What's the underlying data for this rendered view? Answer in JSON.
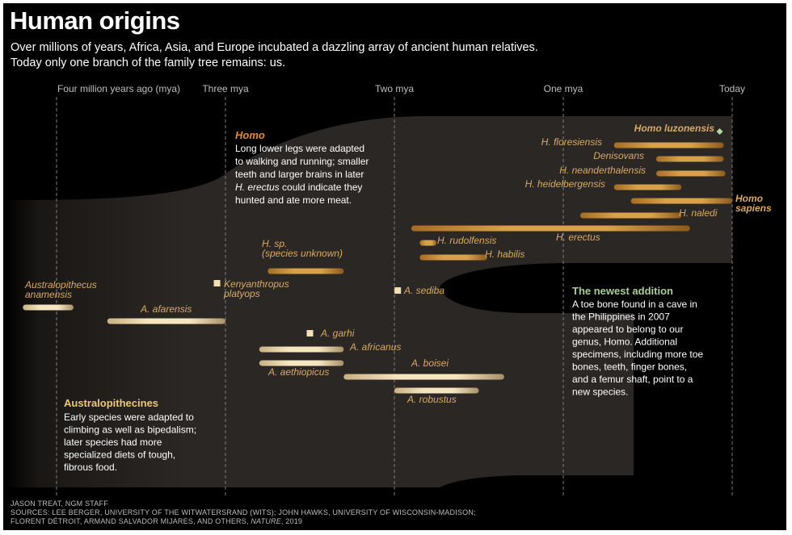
{
  "title": "Human origins",
  "subtitle_lines": [
    "Over millions of years, Africa, Asia, and Europe incubated a dazzling array of ancient human relatives.",
    "Today only one branch of the family tree remains: us."
  ],
  "colors": {
    "background": "#000000",
    "bar_gold": "#d49a3e",
    "bar_light": "#f3dfb3",
    "label_gold": "#d9aa66",
    "homo_header": "#e08a3c",
    "austral_header": "#f1c774",
    "newest_green": "#a9cf95",
    "luzonensis_green": "#b5d69c"
  },
  "chart_data": {
    "type": "timeline",
    "title": "Human origins",
    "x_unit": "million years ago",
    "x_range": [
      4.0,
      0.0
    ],
    "ticks": [
      {
        "value": 4.0,
        "label": "Four million years ago (mya)"
      },
      {
        "value": 3.0,
        "label": "Three mya"
      },
      {
        "value": 2.0,
        "label": "Two mya"
      },
      {
        "value": 1.0,
        "label": "One mya"
      },
      {
        "value": 0.0,
        "label": "Today"
      }
    ],
    "species": [
      {
        "name": "Australopithecus anamensis",
        "lines": [
          "Australopithecus",
          "anamensis"
        ],
        "group": "australopithecine",
        "start": 4.2,
        "end": 3.9
      },
      {
        "name": "A. afarensis",
        "lines": [
          "A. afarensis"
        ],
        "group": "australopithecine",
        "start": 3.7,
        "end": 3.0
      },
      {
        "name": "Kenyanthropus platyops",
        "lines": [
          "Kenyanthropus",
          "platyops"
        ],
        "group": "australopithecine",
        "start": 3.05,
        "end": 3.05,
        "marker": "square"
      },
      {
        "name": "H. sp. (species unknown)",
        "lines": [
          "H. sp.",
          "(species unknown)"
        ],
        "group": "homo",
        "start": 2.75,
        "end": 2.3
      },
      {
        "name": "A. garhi",
        "lines": [
          "A. garhi"
        ],
        "group": "australopithecine",
        "start": 2.5,
        "end": 2.5,
        "marker": "square"
      },
      {
        "name": "A. africanus",
        "lines": [
          "A. africanus"
        ],
        "group": "australopithecine",
        "start": 2.8,
        "end": 2.3
      },
      {
        "name": "A. aethiopicus",
        "lines": [
          "A. aethiopicus"
        ],
        "group": "australopithecine",
        "start": 2.8,
        "end": 2.3
      },
      {
        "name": "A. boisei",
        "lines": [
          "A. boisei"
        ],
        "group": "australopithecine",
        "start": 2.3,
        "end": 1.35
      },
      {
        "name": "A. robustus",
        "lines": [
          "A. robustus"
        ],
        "group": "australopithecine",
        "start": 2.0,
        "end": 1.5
      },
      {
        "name": "A. sediba",
        "lines": [
          "A. sediba"
        ],
        "group": "australopithecine",
        "start": 1.98,
        "end": 1.98,
        "marker": "square"
      },
      {
        "name": "H. rudolfensis",
        "lines": [
          "H. rudolfensis"
        ],
        "group": "homo",
        "start": 1.85,
        "end": 1.75
      },
      {
        "name": "H. habilis",
        "lines": [
          "H. habilis"
        ],
        "group": "homo",
        "start": 1.85,
        "end": 1.45
      },
      {
        "name": "H. erectus",
        "lines": [
          "H. erectus"
        ],
        "group": "homo",
        "start": 1.9,
        "end": 0.25
      },
      {
        "name": "H. naledi",
        "lines": [
          "H. naledi"
        ],
        "group": "homo",
        "start": 0.9,
        "end": 0.3
      },
      {
        "name": "Homo sapiens",
        "lines": [
          "Homo",
          "sapiens"
        ],
        "group": "homo",
        "start": 0.6,
        "end": 0.0
      },
      {
        "name": "H. heidelbergensis",
        "lines": [
          "H. heidelbergensis"
        ],
        "group": "homo",
        "start": 0.7,
        "end": 0.3
      },
      {
        "name": "H. neanderthalensis",
        "lines": [
          "H. neanderthalensis"
        ],
        "group": "homo",
        "start": 0.45,
        "end": 0.04
      },
      {
        "name": "Denisovans",
        "lines": [
          "Denisovans"
        ],
        "group": "homo",
        "start": 0.45,
        "end": 0.05
      },
      {
        "name": "H. floresiensis",
        "lines": [
          "H. floresiensis"
        ],
        "group": "homo",
        "start": 0.7,
        "end": 0.05
      },
      {
        "name": "Homo luzonensis",
        "lines": [
          "Homo luzonensis"
        ],
        "group": "homo",
        "start": 0.05,
        "end": 0.05,
        "marker": "diamond"
      }
    ]
  },
  "annotations": {
    "homo": {
      "header": "Homo",
      "lines": [
        "Long lower legs were adapted",
        "to walking and running; smaller",
        "teeth and larger brains in later",
        "H. erectus could indicate they",
        "hunted and ate more meat."
      ],
      "italic_lead": "H. erectus"
    },
    "australopithecines": {
      "header": "Australopithecines",
      "lines": [
        "Early species were adapted to",
        "climbing as well as bipedalism;",
        "later species had more",
        "specialized diets of tough,",
        "fibrous food."
      ]
    },
    "newest": {
      "header": "The newest addition",
      "lines": [
        "A toe bone found in a cave in",
        "the Philippines in 2007",
        "appeared to belong to our",
        "genus, Homo. Additional",
        "specimens, including more toe",
        "bones, teeth, finger bones,",
        "and a femur shaft, point to a",
        "new species."
      ]
    }
  },
  "credits": {
    "line1": "JASON TREAT, NGM STAFF",
    "line2": "SOURCES: LEE BERGER, UNIVERSITY OF THE WITWATERSRAND (WITS); JOHN HAWKS, UNIVERSITY OF WISCONSIN-MADISON;",
    "line3_prefix": "FLORENT DÉTROIT, ARMAND SALVADOR MIJARES, AND OTHERS, ",
    "line3_journal": "NATURE",
    "line3_suffix": ", 2019"
  }
}
